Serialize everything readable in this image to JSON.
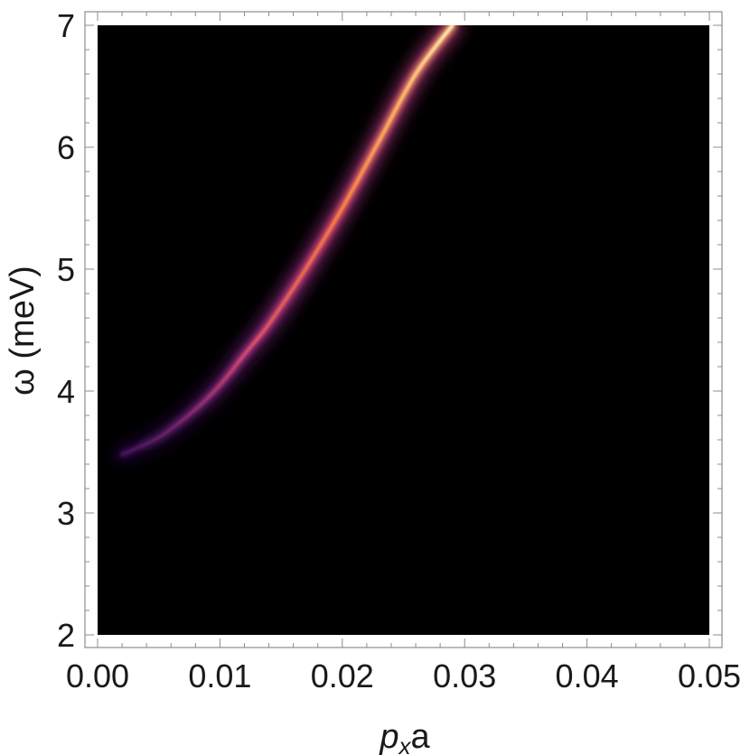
{
  "chart_data": {
    "type": "heatmap",
    "title": "",
    "xlabel_main": "p",
    "xlabel_sub": "x",
    "xlabel_tail": "a",
    "ylabel": "ω (meV)",
    "xlim": [
      0,
      0.05
    ],
    "ylim": [
      2,
      7
    ],
    "x_ticks": [
      0,
      0.01,
      0.02,
      0.03,
      0.04,
      0.05
    ],
    "x_tick_labels": [
      "0.00",
      "0.01",
      "0.02",
      "0.03",
      "0.04",
      "0.05"
    ],
    "y_ticks": [
      2,
      3,
      4,
      5,
      6,
      7
    ],
    "y_tick_labels": [
      "2",
      "3",
      "4",
      "5",
      "6",
      "7"
    ],
    "grid": false,
    "legend": "none",
    "colormap": [
      "#000004",
      "#3b0f70",
      "#8c2981",
      "#de4968",
      "#fe9f6d",
      "#fcfdbf"
    ],
    "background_color": "#000000",
    "dispersion_ridge": {
      "points": [
        {
          "x": 0.002,
          "omega": 3.48,
          "intensity": 0.05
        },
        {
          "x": 0.005,
          "omega": 3.62,
          "intensity": 0.22
        },
        {
          "x": 0.008,
          "omega": 3.85,
          "intensity": 0.35
        },
        {
          "x": 0.01,
          "omega": 4.05,
          "intensity": 0.42
        },
        {
          "x": 0.012,
          "omega": 4.3,
          "intensity": 0.55
        },
        {
          "x": 0.014,
          "omega": 4.55,
          "intensity": 0.62
        },
        {
          "x": 0.017,
          "omega": 5.0,
          "intensity": 0.68
        },
        {
          "x": 0.02,
          "omega": 5.5,
          "intensity": 0.76
        },
        {
          "x": 0.023,
          "omega": 6.05,
          "intensity": 0.84
        },
        {
          "x": 0.026,
          "omega": 6.6,
          "intensity": 0.93
        },
        {
          "x": 0.029,
          "omega": 7.0,
          "intensity": 1.0
        }
      ]
    }
  }
}
